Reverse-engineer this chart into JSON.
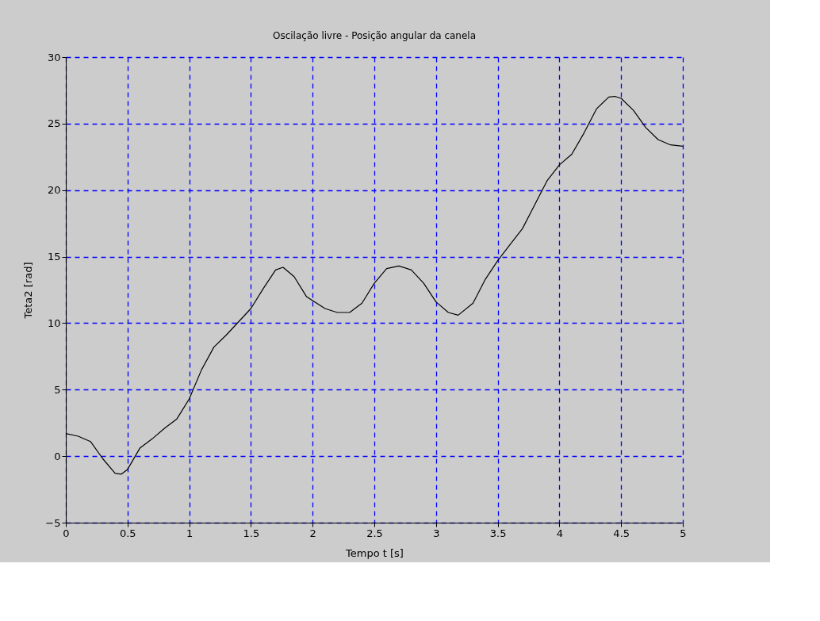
{
  "chart_data": {
    "type": "line",
    "title": "Oscilação livre - Posição angular da canela",
    "xlabel": "Tempo t [s]",
    "ylabel": "Teta2 [rad]",
    "x": [
      0,
      0.1,
      0.2,
      0.3,
      0.4,
      0.45,
      0.5,
      0.6,
      0.7,
      0.8,
      0.9,
      1.0,
      1.1,
      1.2,
      1.3,
      1.4,
      1.5,
      1.6,
      1.7,
      1.76,
      1.85,
      1.95,
      2.0,
      2.1,
      2.2,
      2.3,
      2.4,
      2.5,
      2.6,
      2.7,
      2.8,
      2.9,
      3.0,
      3.1,
      3.18,
      3.3,
      3.4,
      3.5,
      3.6,
      3.7,
      3.8,
      3.9,
      4.0,
      4.1,
      4.2,
      4.3,
      4.4,
      4.45,
      4.5,
      4.6,
      4.7,
      4.8,
      4.9,
      5.0
    ],
    "series": [
      {
        "color": "#000000",
        "values": [
          1.7,
          1.5,
          1.1,
          -0.2,
          -1.3,
          -1.35,
          -1.0,
          0.6,
          1.3,
          2.1,
          2.8,
          4.3,
          6.5,
          8.2,
          9.1,
          10.1,
          11.1,
          12.6,
          14.0,
          14.2,
          13.5,
          12.0,
          11.7,
          11.1,
          10.8,
          10.8,
          11.5,
          13.0,
          14.1,
          14.3,
          14.0,
          13.0,
          11.6,
          10.8,
          10.6,
          11.5,
          13.3,
          14.7,
          15.9,
          17.1,
          18.9,
          20.7,
          21.9,
          22.7,
          24.3,
          26.1,
          27.0,
          27.05,
          26.9,
          26.0,
          24.7,
          23.8,
          23.4,
          23.3
        ]
      }
    ],
    "xlim": [
      0,
      5
    ],
    "ylim": [
      -5,
      30
    ],
    "xticks": [
      0,
      0.5,
      1,
      1.5,
      2,
      2.5,
      3,
      3.5,
      4,
      4.5,
      5
    ],
    "yticks": [
      -5,
      0,
      5,
      10,
      15,
      20,
      25,
      30
    ],
    "grid": true
  }
}
